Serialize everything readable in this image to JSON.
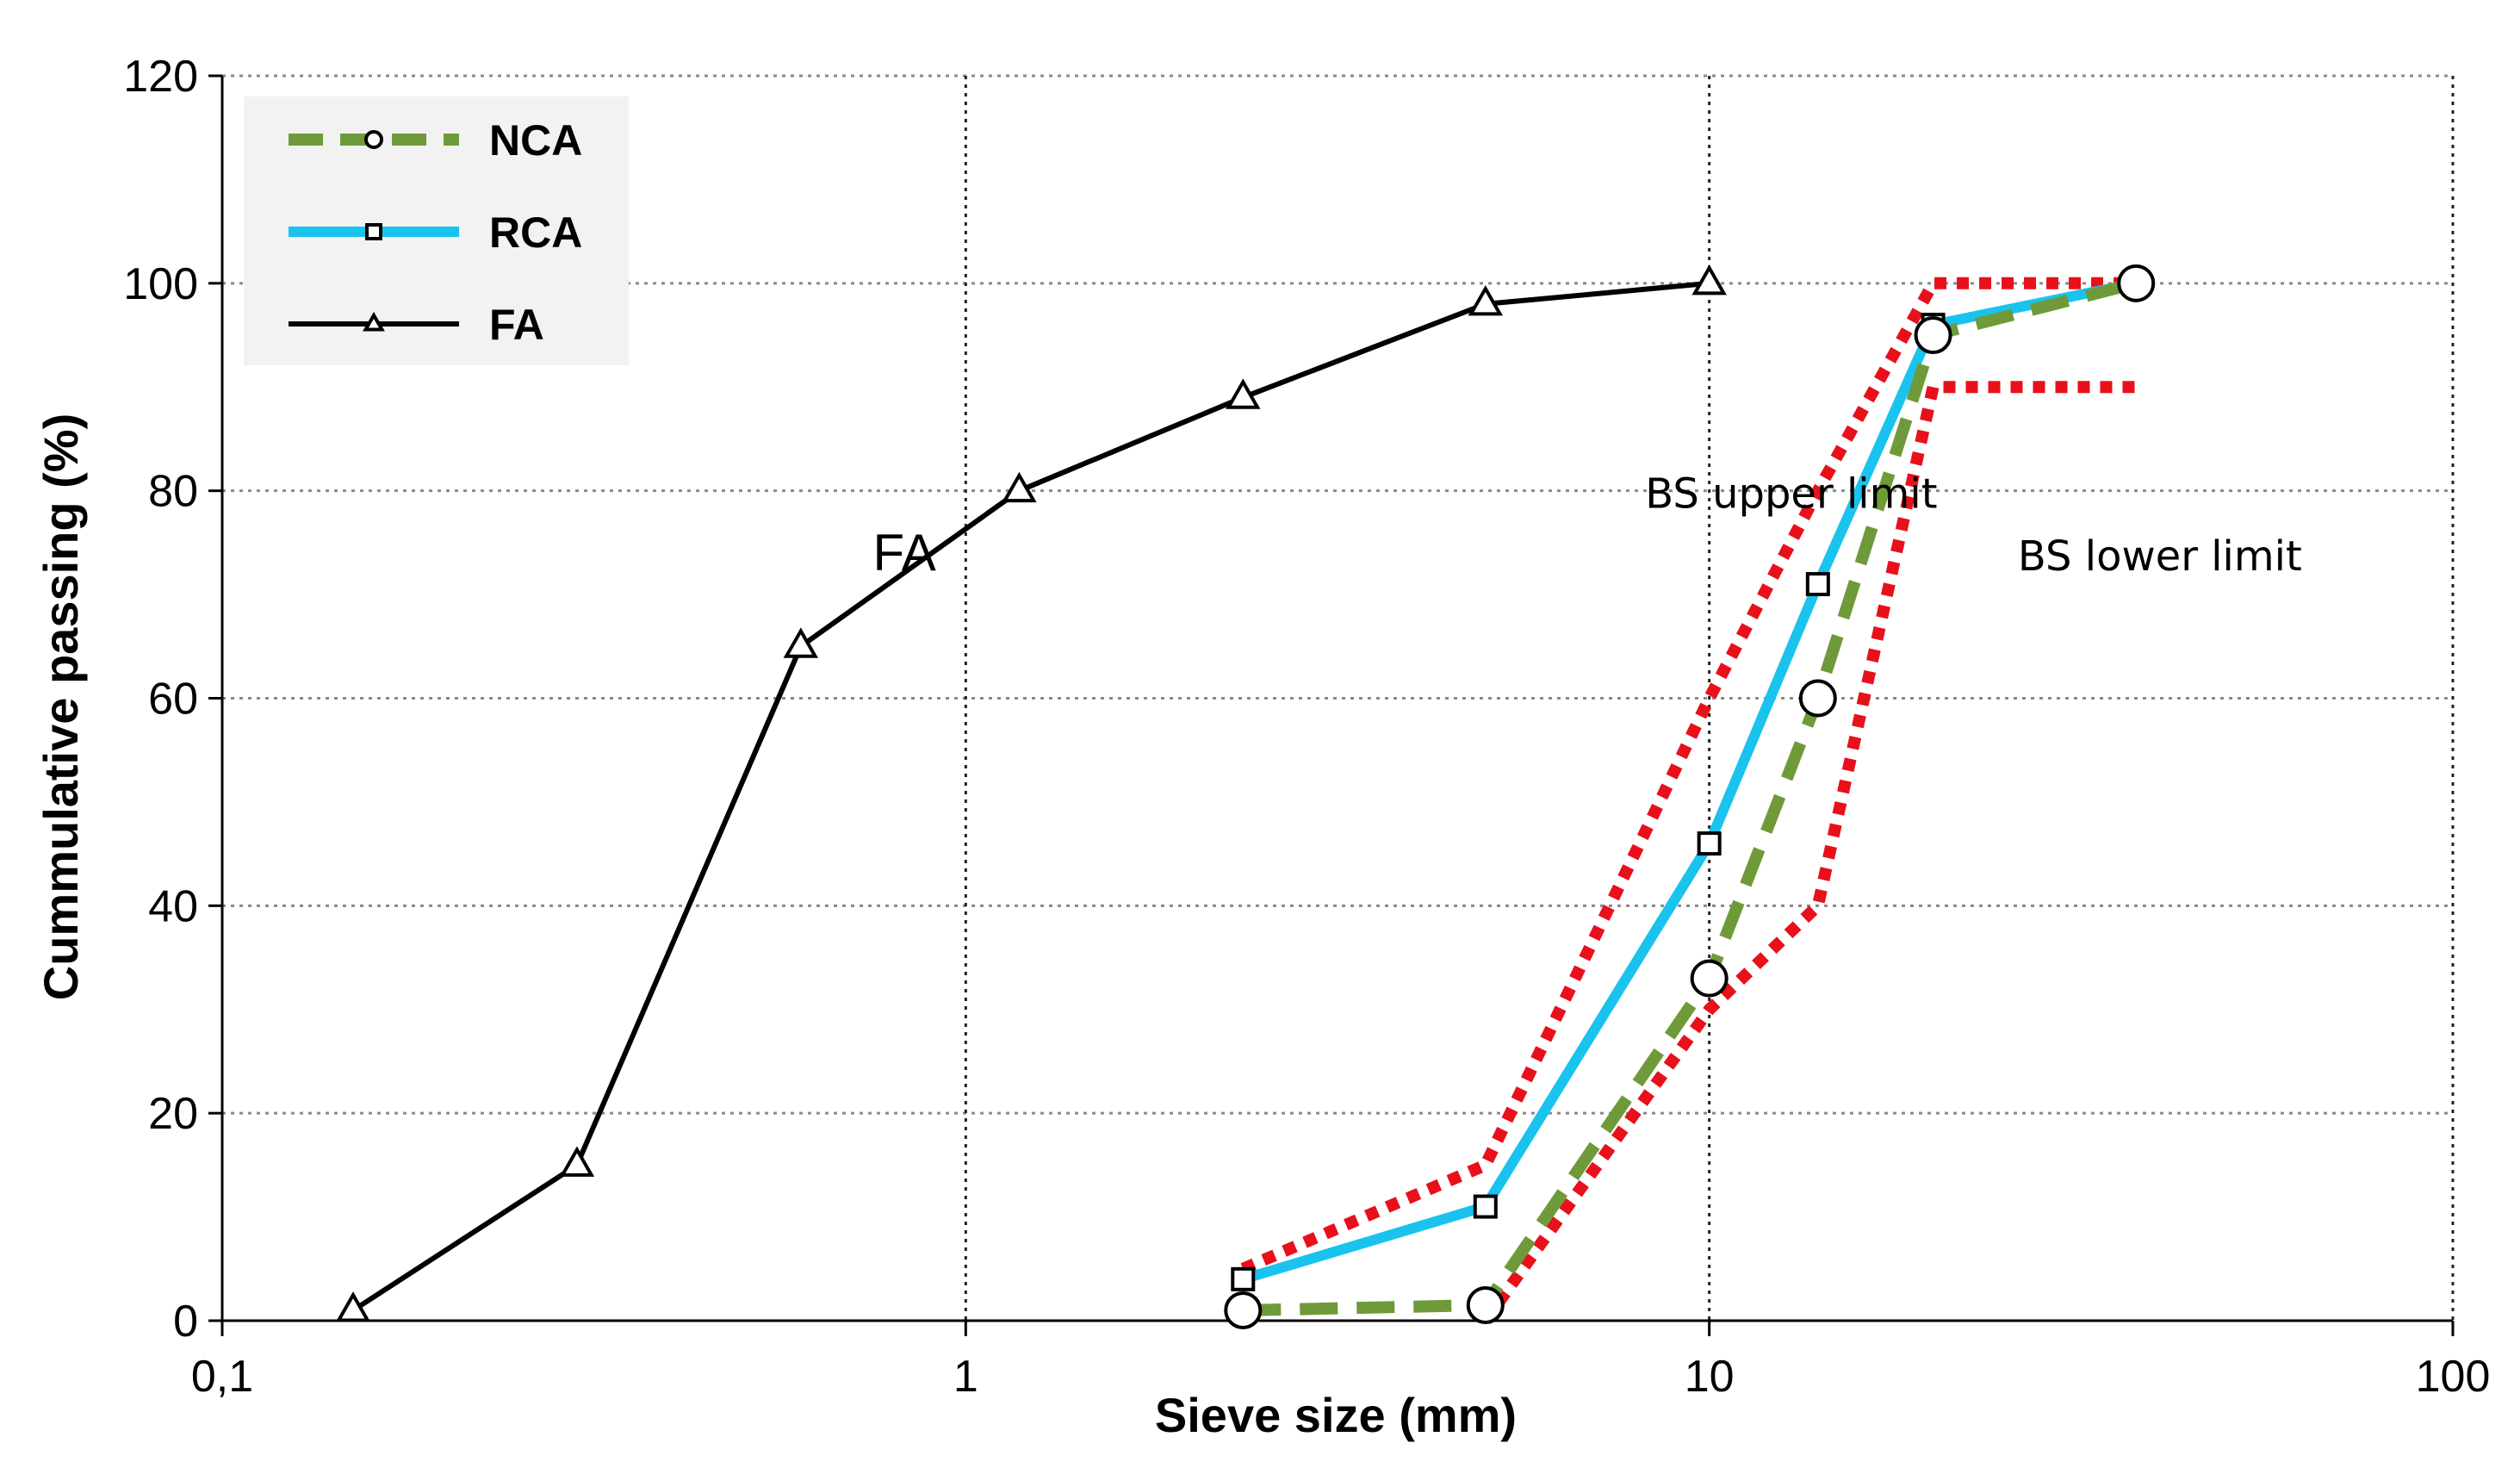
{
  "chart_data": {
    "type": "line",
    "x_scale": "log",
    "title": "",
    "xlabel": "Sieve size (mm)",
    "ylabel": "Cummulative passing (%)",
    "xlim": [
      0.1,
      100
    ],
    "ylim": [
      0,
      120
    ],
    "x_ticks": [
      {
        "value": 0.1,
        "label": "0,1"
      },
      {
        "value": 1,
        "label": "1"
      },
      {
        "value": 10,
        "label": "10"
      },
      {
        "value": 100,
        "label": "100"
      }
    ],
    "y_ticks": [
      0,
      20,
      40,
      60,
      80,
      100,
      120
    ],
    "grid": true,
    "legend_position": "top-left",
    "series": [
      {
        "name": "NCA",
        "color": "#6f9a3a",
        "style": "dashed",
        "marker": "circle",
        "x": [
          2.36,
          5,
          10,
          14,
          20,
          37.5
        ],
        "y": [
          1,
          1.5,
          33,
          60,
          95,
          100
        ]
      },
      {
        "name": "RCA",
        "color": "#19c3ee",
        "style": "solid",
        "marker": "square",
        "x": [
          2.36,
          5,
          10,
          14,
          20,
          37.5
        ],
        "y": [
          4,
          11,
          46,
          71,
          96,
          100
        ]
      },
      {
        "name": "FA",
        "color": "#000000",
        "style": "solid",
        "marker": "triangle",
        "x": [
          0.15,
          0.3,
          0.6,
          1.18,
          2.36,
          5,
          10
        ],
        "y": [
          1,
          15,
          65,
          80,
          89,
          98,
          100
        ]
      }
    ],
    "limits": [
      {
        "label": "BS upper limit",
        "color": "#e8101a",
        "style": "dotted",
        "x": [
          2.36,
          5,
          10,
          14,
          20,
          37.5
        ],
        "y": [
          5,
          15,
          60,
          80,
          100,
          100
        ]
      },
      {
        "label": "BS lower limit",
        "color": "#e8101a",
        "style": "dotted",
        "x": [
          5,
          10,
          14,
          20,
          37.5
        ],
        "y": [
          0,
          30,
          40,
          90,
          90
        ]
      }
    ],
    "annotations": [
      {
        "text": "FA",
        "x": 0.75,
        "y": 74
      },
      {
        "text": "BS upper limit",
        "x": 8.2,
        "y": 80
      },
      {
        "text": "BS lower limit",
        "x": 26,
        "y": 74
      }
    ]
  }
}
